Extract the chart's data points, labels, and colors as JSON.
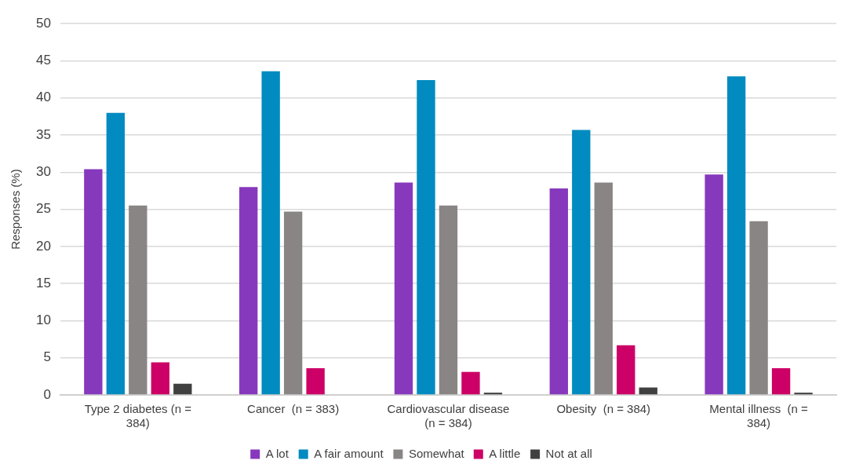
{
  "chart_data": {
    "type": "bar",
    "ylabel": "Responses (%)",
    "categories": [
      "Type 2 diabetes (n = 384)",
      "Cancer  (n = 383)",
      "Cardiovascular disease  (n = 384)",
      "Obesity  (n = 384)",
      "Mental illness  (n = 384)"
    ],
    "series": [
      {
        "name": "A lot",
        "color": "#8639bd",
        "values": [
          30.4,
          28.0,
          28.6,
          27.8,
          29.7
        ]
      },
      {
        "name": "A fair amount",
        "color": "#018bc0",
        "values": [
          38.0,
          43.6,
          42.4,
          35.7,
          42.9
        ]
      },
      {
        "name": "Somewhat",
        "color": "#8a8585",
        "values": [
          25.5,
          24.7,
          25.5,
          28.6,
          23.4
        ]
      },
      {
        "name": "A little",
        "color": "#cc0066",
        "values": [
          4.4,
          3.6,
          3.1,
          6.7,
          3.6
        ]
      },
      {
        "name": "Not at all",
        "color": "#404040",
        "values": [
          1.5,
          0,
          0.3,
          1.0,
          0.3
        ]
      }
    ],
    "ylim": [
      0,
      50
    ],
    "yticks": [
      0,
      5,
      10,
      15,
      20,
      25,
      30,
      35,
      40,
      45,
      50
    ],
    "grid": "y",
    "legend": "bottom"
  }
}
